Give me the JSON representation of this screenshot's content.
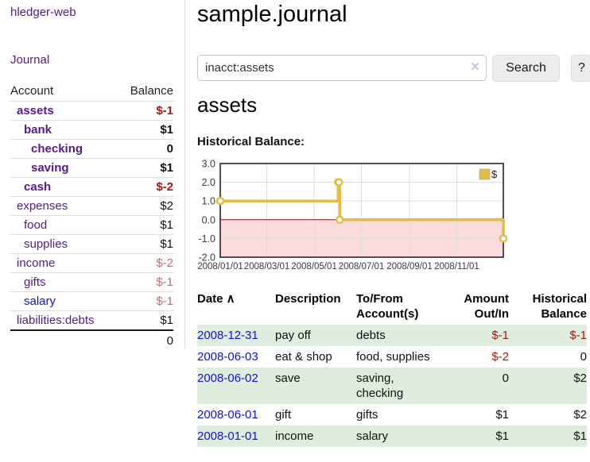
{
  "sidebar": {
    "brand": "hledger-web",
    "journal_label": "Journal",
    "accounts": {
      "header": {
        "account": "Account",
        "balance": "Balance"
      },
      "rows": [
        {
          "name": "assets",
          "indent": 1,
          "bold": true,
          "balance": "$-1"
        },
        {
          "name": "bank",
          "indent": 2,
          "bold": true,
          "balance": "$1"
        },
        {
          "name": "checking",
          "indent": 3,
          "bold": true,
          "balance": "0"
        },
        {
          "name": "saving",
          "indent": 3,
          "bold": true,
          "balance": "$1"
        },
        {
          "name": "cash",
          "indent": 2,
          "bold": true,
          "balance": "$-2"
        },
        {
          "name": "expenses",
          "indent": 1,
          "bold": false,
          "balance": "$2"
        },
        {
          "name": "food",
          "indent": 2,
          "bold": false,
          "balance": "$1"
        },
        {
          "name": "supplies",
          "indent": 2,
          "bold": false,
          "balance": "$1"
        },
        {
          "name": "income",
          "indent": 1,
          "bold": false,
          "balance": "$-2"
        },
        {
          "name": "gifts",
          "indent": 2,
          "bold": false,
          "balance": "$-1"
        },
        {
          "name": "salary",
          "indent": 2,
          "bold": false,
          "balance": "$-1",
          "unvisited": true
        },
        {
          "name": "liabilities:debts",
          "indent": 1,
          "bold": false,
          "balance": "$1"
        }
      ],
      "total": "0"
    }
  },
  "main": {
    "title": "sample.journal",
    "search": {
      "value": "inacct:assets",
      "clear_icon": "×",
      "button_label": "Search",
      "help_label": "?"
    },
    "account_heading": "assets",
    "chart_label": "Historical Balance:",
    "table": {
      "columns": [
        {
          "label": "Date",
          "sort_indicator": "∧",
          "align": "left"
        },
        {
          "label": "Description",
          "align": "left"
        },
        {
          "label": "To/From Account(s)",
          "align": "left"
        },
        {
          "label": "Amount Out/In",
          "align": "right"
        },
        {
          "label": "Historical Balance",
          "align": "right"
        }
      ],
      "rows": [
        {
          "date": "2008-12-31",
          "description": "pay off",
          "accounts": "debts",
          "amount": "$-1",
          "balance": "$-1"
        },
        {
          "date": "2008-06-03",
          "description": "eat & shop",
          "accounts": "food, supplies",
          "amount": "$-2",
          "balance": "0"
        },
        {
          "date": "2008-06-02",
          "description": "save",
          "accounts": "saving, checking",
          "amount": "0",
          "balance": "$2"
        },
        {
          "date": "2008-06-01",
          "description": "gift",
          "accounts": "gifts",
          "amount": "$1",
          "balance": "$2"
        },
        {
          "date": "2008-01-01",
          "description": "income",
          "accounts": "salary",
          "amount": "$1",
          "balance": "$1"
        }
      ]
    }
  },
  "chart_data": {
    "type": "line",
    "step": true,
    "title": "Historical Balance:",
    "x_start": "2008-01-01",
    "x_end": "2008-12-31",
    "ylim": [
      -2,
      3
    ],
    "y_ticks": [
      3,
      2,
      1,
      0,
      -1,
      -2
    ],
    "x_ticks": [
      {
        "date": "2008-01-01",
        "label": "2008/01/01"
      },
      {
        "date": "2008-03-01",
        "label": "2008/03/01"
      },
      {
        "date": "2008-05-01",
        "label": "2008/05/01"
      },
      {
        "date": "2008-07-01",
        "label": "2008/07/01"
      },
      {
        "date": "2008-09-01",
        "label": "2008/09/01"
      },
      {
        "date": "2008-11-01",
        "label": "2008/11/01"
      }
    ],
    "series": [
      {
        "name": "$",
        "points": [
          {
            "date": "2008-01-01",
            "value": 1
          },
          {
            "date": "2008-06-01",
            "value": 2
          },
          {
            "date": "2008-06-02",
            "value": 2
          },
          {
            "date": "2008-06-03",
            "value": 0
          },
          {
            "date": "2008-12-31",
            "value": -1
          }
        ]
      }
    ],
    "legend_position": "top-right",
    "grid": true,
    "line_color": "#e5bc43",
    "negative_region_color": "#fbdbdb",
    "zero_line_color": "#8b1a1a"
  },
  "colors": {
    "accent_purple": "#551a8b",
    "link_blue": "#1010dd",
    "negative_strong": "#9d1919",
    "negative_faded": "#b96f6f",
    "row_stripe_green": "#deeddd"
  }
}
